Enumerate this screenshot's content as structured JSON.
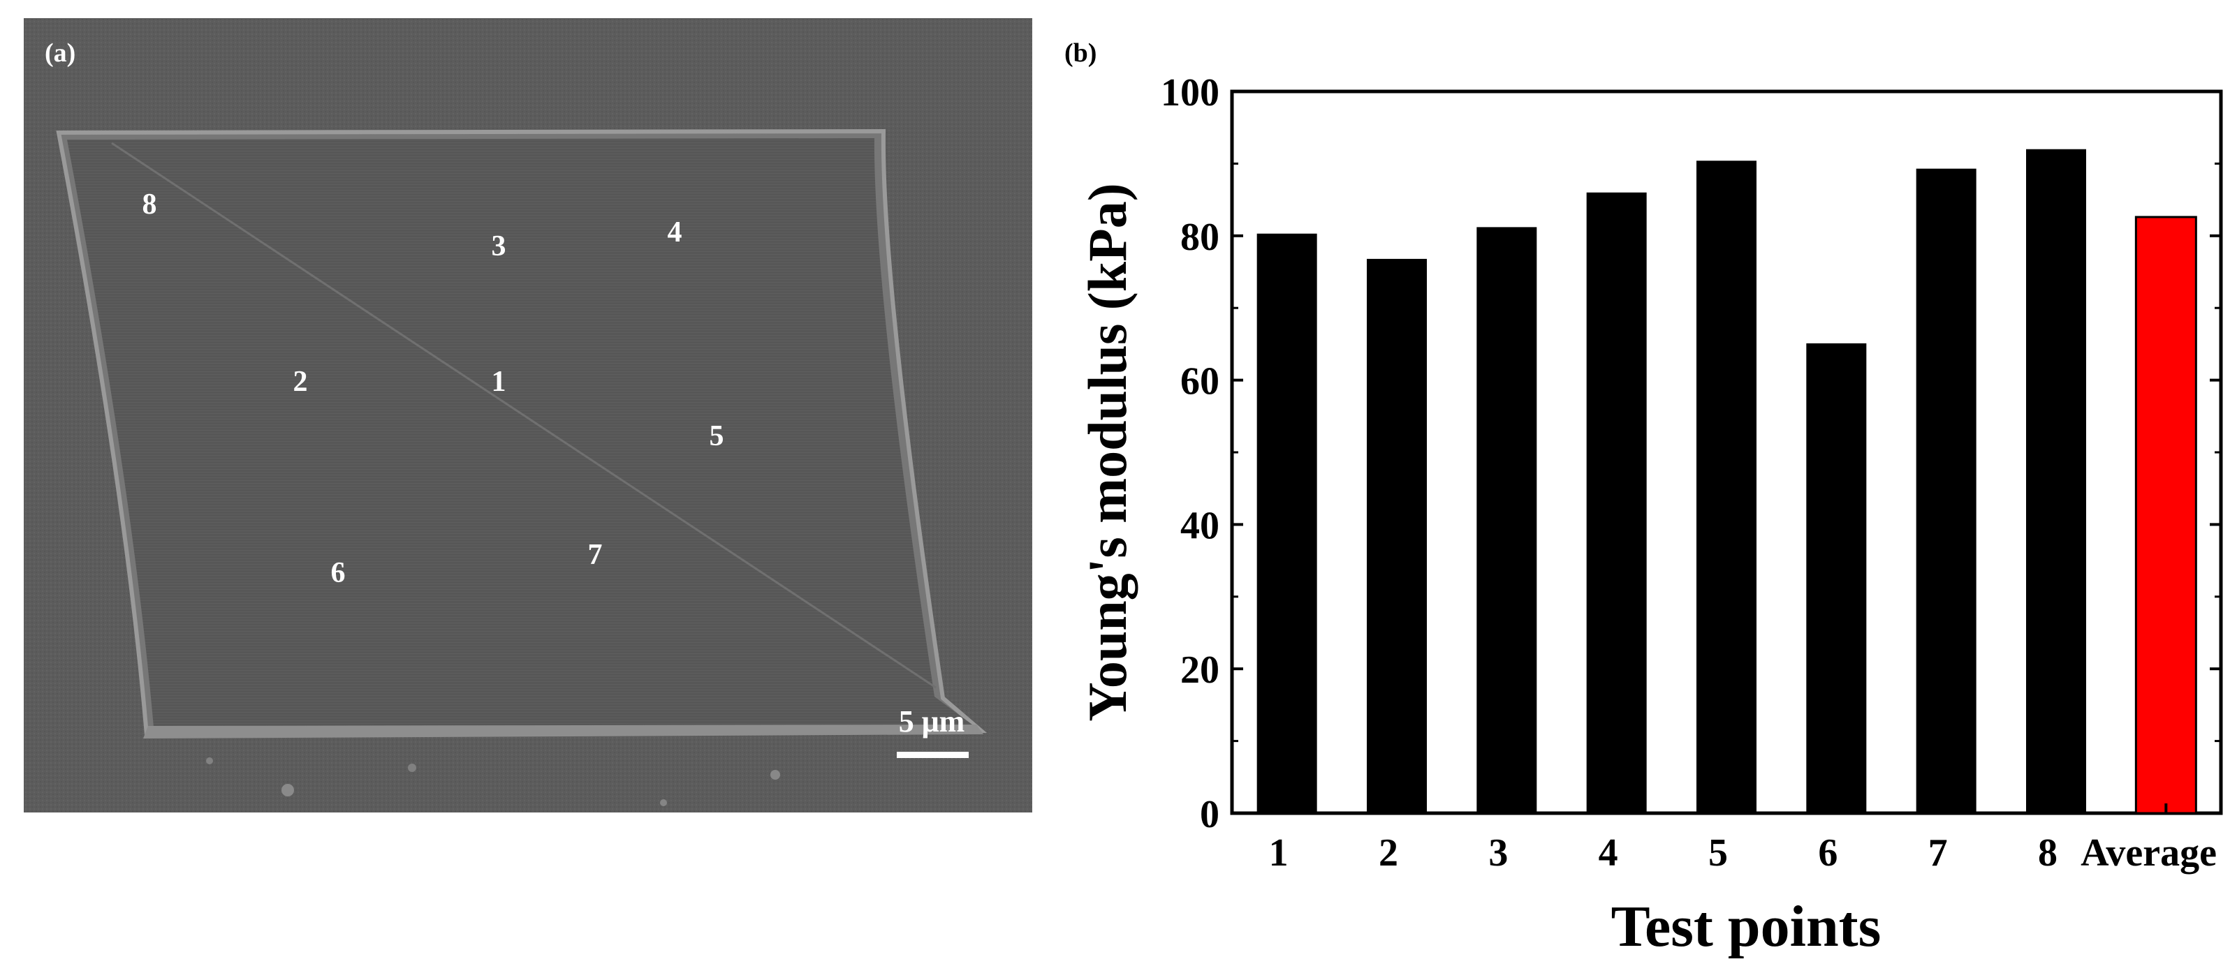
{
  "panel_a": {
    "label": "(a)",
    "scale_bar": "5 μm",
    "points": [
      {
        "id": "1",
        "label": "1"
      },
      {
        "id": "2",
        "label": "2"
      },
      {
        "id": "3",
        "label": "3"
      },
      {
        "id": "4",
        "label": "4"
      },
      {
        "id": "5",
        "label": "5"
      },
      {
        "id": "6",
        "label": "6"
      },
      {
        "id": "7",
        "label": "7"
      },
      {
        "id": "8",
        "label": "8"
      }
    ]
  },
  "panel_b": {
    "label": "(b)"
  },
  "colors": {
    "bar": "#000000",
    "average_bar": "#ff0000",
    "sem_background": "#5f5f5f",
    "sem_membrane": "#595959"
  },
  "chart_data": {
    "type": "bar",
    "title": "",
    "xlabel": "Test points",
    "ylabel": "Young's modulus (kPa)",
    "categories": [
      "1",
      "2",
      "3",
      "4",
      "5",
      "6",
      "7",
      "8",
      "Average"
    ],
    "values": [
      80.3,
      76.8,
      81.2,
      86.0,
      90.4,
      65.1,
      89.3,
      92.0,
      82.6
    ],
    "ylim": [
      0,
      100
    ],
    "yticks": [
      "0",
      "20",
      "40",
      "60",
      "80",
      "100"
    ],
    "grid": false,
    "highlight_category": "Average"
  }
}
